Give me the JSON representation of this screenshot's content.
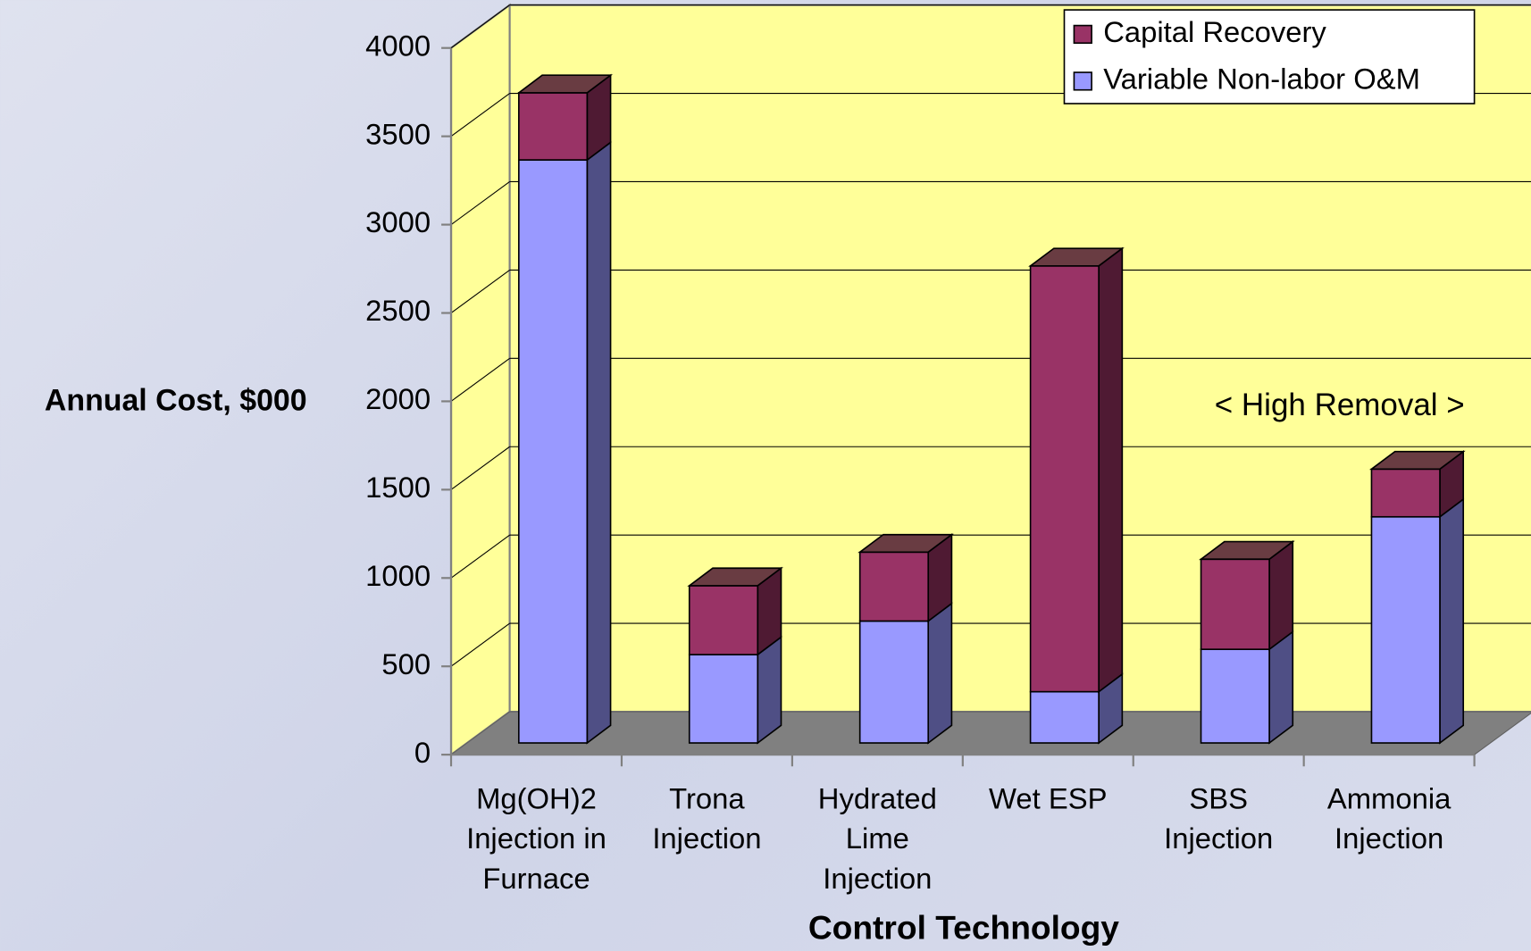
{
  "chart_data": {
    "type": "bar3d_stacked",
    "y_axis_label": "Annual Cost, $000",
    "x_axis_label": "Control Technology",
    "annotation": "< High Removal >",
    "categories": [
      "Mg(OH)2\nInjection in\nFurnace",
      "Trona\nInjection",
      "Hydrated\nLime\nInjection",
      "Wet ESP",
      "SBS\nInjection",
      "Ammonia\nInjection"
    ],
    "series": [
      {
        "name": "Variable Non-labor O&M",
        "color": "#9999ff",
        "side_color": "#4f4f85",
        "values": [
          3300,
          500,
          690,
          290,
          530,
          1280
        ]
      },
      {
        "name": "Capital Recovery",
        "color": "#993366",
        "side_color": "#4f1a33",
        "values": [
          380,
          390,
          390,
          2410,
          510,
          270
        ]
      }
    ],
    "ylim": [
      0,
      4000
    ],
    "yticks": [
      0,
      500,
      1000,
      1500,
      2000,
      2500,
      3000,
      3500,
      4000
    ],
    "grid": true,
    "legend": "top-right"
  }
}
